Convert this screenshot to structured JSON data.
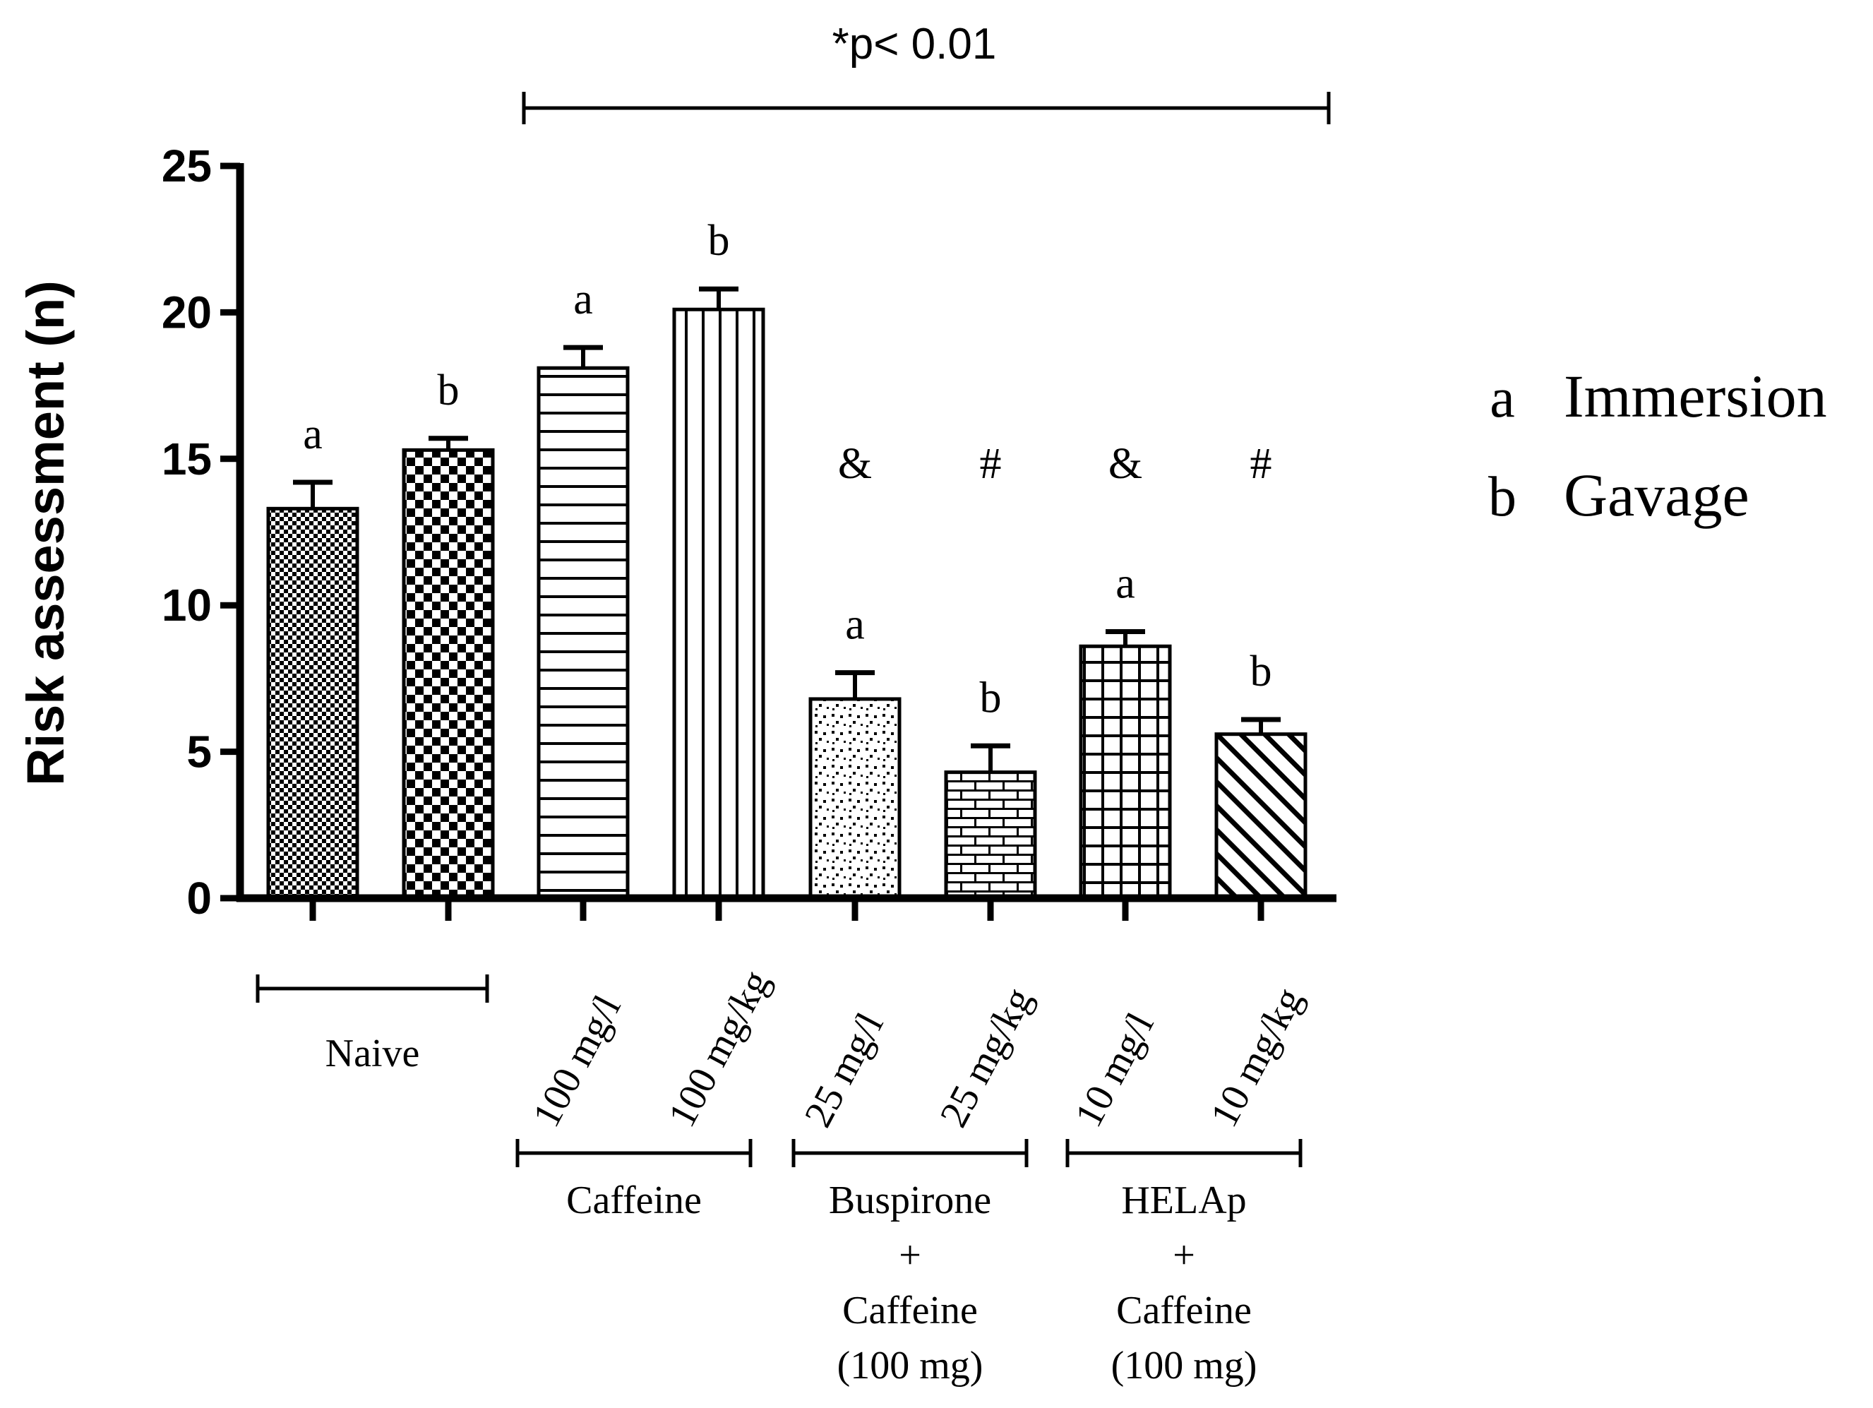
{
  "chart_data": {
    "type": "bar",
    "title": "",
    "xlabel": "",
    "ylabel": "Risk assessment (n)",
    "ylim": [
      0,
      25
    ],
    "yticks": [
      0,
      5,
      10,
      15,
      20,
      25
    ],
    "grid": false,
    "bars": [
      {
        "value": 13.3,
        "error": 0.9,
        "route": "a",
        "mark": "",
        "label": "",
        "pattern": "fine-check"
      },
      {
        "value": 15.3,
        "error": 0.4,
        "route": "b",
        "mark": "",
        "label": "",
        "pattern": "coarse-check"
      },
      {
        "value": 18.1,
        "error": 0.7,
        "route": "a",
        "mark": "",
        "label": "100 mg/l",
        "pattern": "horizontal-lines"
      },
      {
        "value": 20.1,
        "error": 0.7,
        "route": "b",
        "mark": "",
        "label": "100 mg/kg",
        "pattern": "vertical-lines"
      },
      {
        "value": 6.8,
        "error": 0.9,
        "route": "a",
        "mark": "&",
        "label": "25 mg/l",
        "pattern": "dots"
      },
      {
        "value": 4.3,
        "error": 0.9,
        "route": "b",
        "mark": "#",
        "label": "25 mg/kg",
        "pattern": "bricks"
      },
      {
        "value": 8.6,
        "error": 0.5,
        "route": "a",
        "mark": "&",
        "label": "10 mg/l",
        "pattern": "grid"
      },
      {
        "value": 5.6,
        "error": 0.5,
        "route": "b",
        "mark": "#",
        "label": "10 mg/kg",
        "pattern": "diagonal"
      }
    ],
    "groups": [
      {
        "name": "Naive",
        "lines": [
          "Naive"
        ]
      },
      {
        "name": "Caffeine",
        "lines": [
          "Caffeine"
        ]
      },
      {
        "name": "Buspirone + Caffeine (100 mg)",
        "lines": [
          "Buspirone",
          "+",
          "Caffeine",
          "(100 mg)"
        ]
      },
      {
        "name": "HELAp + Caffeine (100 mg)",
        "lines": [
          "HELAp",
          "+",
          "Caffeine",
          "(100 mg)"
        ]
      }
    ],
    "significance": "*p< 0.01",
    "legend": [
      {
        "key": "a",
        "label": "Immersion"
      },
      {
        "key": "b",
        "label": "Gavage"
      }
    ]
  }
}
